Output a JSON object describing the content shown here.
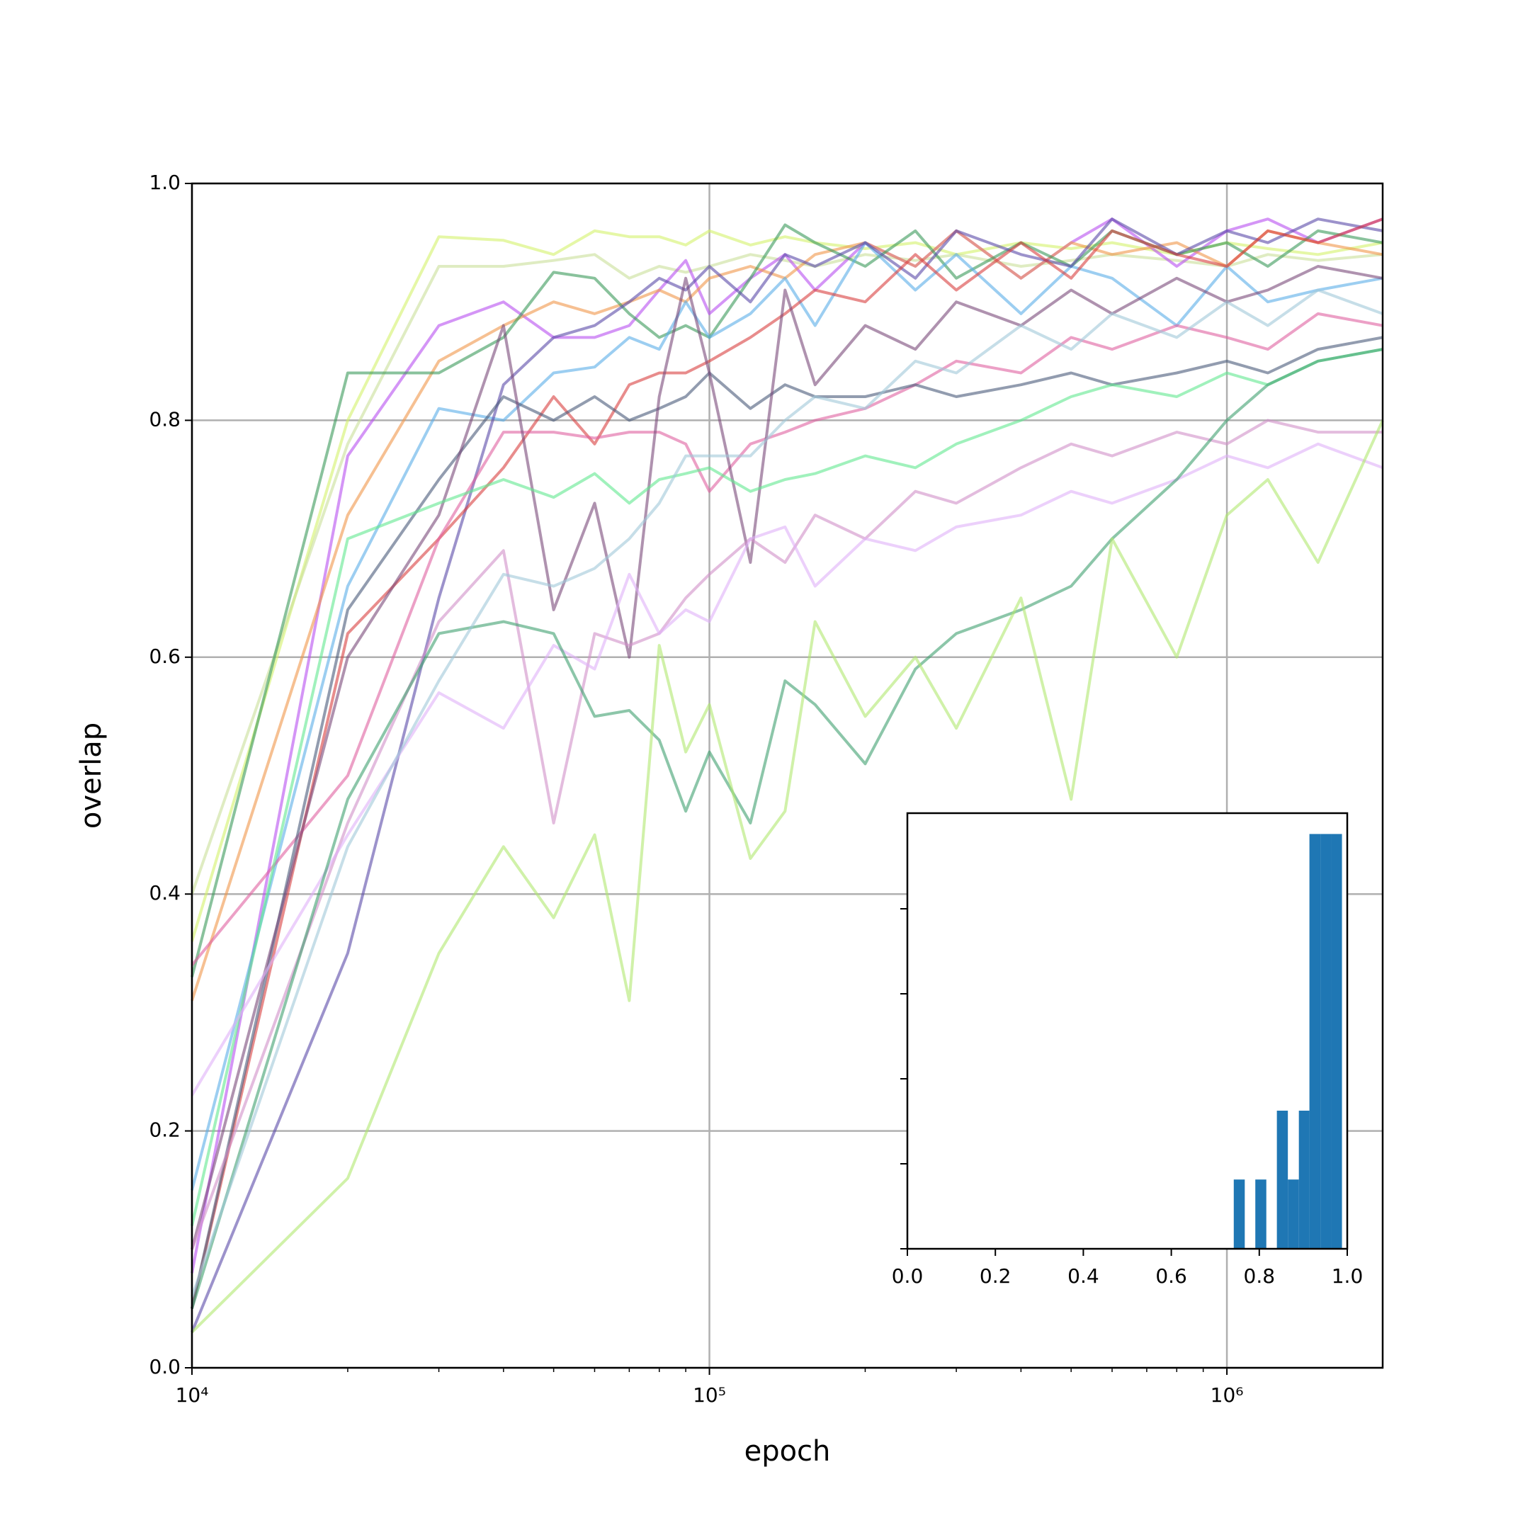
{
  "chart_data": [
    {
      "type": "line",
      "xlabel": "epoch",
      "ylabel": "overlap",
      "xscale": "log",
      "grid": true,
      "xlim": [
        10000,
        2000000
      ],
      "ylim": [
        0,
        1
      ],
      "xticks": [
        {
          "value": 10000,
          "label": "10⁴"
        },
        {
          "value": 100000,
          "label": "10⁵"
        },
        {
          "value": 1000000,
          "label": "10⁶"
        }
      ],
      "xminorticks": [
        20000,
        30000,
        40000,
        50000,
        60000,
        70000,
        80000,
        90000,
        200000,
        300000,
        400000,
        500000,
        600000,
        700000,
        800000,
        900000
      ],
      "yticks": [
        {
          "value": 0,
          "label": "0.0"
        },
        0.2,
        0.4,
        0.6,
        0.8,
        {
          "value": 1,
          "label": "1.0"
        }
      ],
      "x": [
        10000,
        20000,
        30000,
        40000,
        50000,
        60000,
        70000,
        80000,
        90000,
        100000,
        120000,
        140000,
        160000,
        200000,
        250000,
        300000,
        400000,
        500000,
        600000,
        800000,
        1000000,
        1200000,
        1500000,
        2000000
      ],
      "series": [
        {
          "color": "#d4f26a",
          "values": [
            0.36,
            0.8,
            0.955,
            0.952,
            0.94,
            0.96,
            0.955,
            0.955,
            0.948,
            0.96,
            0.948,
            0.955,
            0.95,
            0.945,
            0.95,
            0.94,
            0.95,
            0.945,
            0.95,
            0.94,
            0.95,
            0.945,
            0.94,
            0.95
          ]
        },
        {
          "color": "#c9e09a",
          "values": [
            0.4,
            0.78,
            0.93,
            0.93,
            0.935,
            0.94,
            0.92,
            0.93,
            0.925,
            0.93,
            0.94,
            0.935,
            0.93,
            0.94,
            0.935,
            0.94,
            0.93,
            0.935,
            0.94,
            0.935,
            0.93,
            0.94,
            0.935,
            0.94
          ]
        },
        {
          "color": "#b84ef0",
          "values": [
            0.08,
            0.77,
            0.88,
            0.9,
            0.87,
            0.87,
            0.88,
            0.91,
            0.935,
            0.89,
            0.92,
            0.94,
            0.91,
            0.95,
            0.93,
            0.96,
            0.92,
            0.95,
            0.97,
            0.93,
            0.96,
            0.97,
            0.95,
            0.97
          ]
        },
        {
          "color": "#f0964a",
          "values": [
            0.31,
            0.72,
            0.85,
            0.88,
            0.9,
            0.89,
            0.9,
            0.91,
            0.9,
            0.92,
            0.93,
            0.92,
            0.94,
            0.95,
            0.93,
            0.96,
            0.92,
            0.95,
            0.94,
            0.95,
            0.93,
            0.96,
            0.95,
            0.94
          ]
        },
        {
          "color": "#3a9a5a",
          "values": [
            0.33,
            0.84,
            0.84,
            0.87,
            0.925,
            0.92,
            0.89,
            0.87,
            0.88,
            0.87,
            0.92,
            0.965,
            0.95,
            0.93,
            0.96,
            0.92,
            0.95,
            0.93,
            0.96,
            0.94,
            0.95,
            0.93,
            0.96,
            0.95
          ]
        },
        {
          "color": "#5aaee8",
          "values": [
            0.15,
            0.66,
            0.81,
            0.8,
            0.84,
            0.845,
            0.87,
            0.86,
            0.9,
            0.87,
            0.89,
            0.92,
            0.88,
            0.95,
            0.91,
            0.94,
            0.89,
            0.93,
            0.92,
            0.88,
            0.93,
            0.9,
            0.91,
            0.92
          ]
        },
        {
          "color": "#5a4aa8",
          "values": [
            0.03,
            0.35,
            0.65,
            0.83,
            0.87,
            0.88,
            0.9,
            0.92,
            0.91,
            0.93,
            0.9,
            0.94,
            0.93,
            0.95,
            0.92,
            0.96,
            0.94,
            0.93,
            0.97,
            0.94,
            0.96,
            0.95,
            0.97,
            0.96
          ]
        },
        {
          "color": "#d84040",
          "values": [
            0.05,
            0.62,
            0.7,
            0.76,
            0.82,
            0.78,
            0.83,
            0.84,
            0.84,
            0.85,
            0.87,
            0.89,
            0.91,
            0.9,
            0.94,
            0.91,
            0.95,
            0.92,
            0.96,
            0.94,
            0.93,
            0.96,
            0.95,
            0.97
          ]
        },
        {
          "color": "#e060a0",
          "values": [
            0.34,
            0.5,
            0.7,
            0.79,
            0.79,
            0.785,
            0.79,
            0.79,
            0.78,
            0.74,
            0.78,
            0.79,
            0.8,
            0.81,
            0.83,
            0.85,
            0.84,
            0.87,
            0.86,
            0.88,
            0.87,
            0.86,
            0.89,
            0.88
          ]
        },
        {
          "color": "#4a5a7a",
          "values": [
            0.05,
            0.64,
            0.75,
            0.82,
            0.8,
            0.82,
            0.8,
            0.81,
            0.82,
            0.84,
            0.81,
            0.83,
            0.82,
            0.82,
            0.83,
            0.82,
            0.83,
            0.84,
            0.83,
            0.84,
            0.85,
            0.84,
            0.86,
            0.87
          ]
        },
        {
          "color": "#7a4a7a",
          "values": [
            0.1,
            0.6,
            0.72,
            0.88,
            0.64,
            0.73,
            0.6,
            0.82,
            0.92,
            0.84,
            0.68,
            0.91,
            0.83,
            0.88,
            0.86,
            0.9,
            0.88,
            0.91,
            0.89,
            0.92,
            0.9,
            0.91,
            0.93,
            0.92
          ]
        },
        {
          "color": "#60e890",
          "values": [
            0.12,
            0.7,
            0.73,
            0.75,
            0.735,
            0.755,
            0.73,
            0.75,
            0.755,
            0.76,
            0.74,
            0.75,
            0.755,
            0.77,
            0.76,
            0.78,
            0.8,
            0.82,
            0.83,
            0.82,
            0.84,
            0.83,
            0.85,
            0.86
          ]
        },
        {
          "color": "#d090c8",
          "values": [
            0.1,
            0.46,
            0.63,
            0.69,
            0.46,
            0.62,
            0.61,
            0.62,
            0.65,
            0.67,
            0.7,
            0.68,
            0.72,
            0.7,
            0.74,
            0.73,
            0.76,
            0.78,
            0.77,
            0.79,
            0.78,
            0.8,
            0.79,
            0.79
          ]
        },
        {
          "color": "#e0b0f8",
          "values": [
            0.23,
            0.45,
            0.57,
            0.54,
            0.61,
            0.59,
            0.67,
            0.62,
            0.64,
            0.63,
            0.7,
            0.71,
            0.66,
            0.7,
            0.69,
            0.71,
            0.72,
            0.74,
            0.73,
            0.75,
            0.77,
            0.76,
            0.78,
            0.76
          ]
        },
        {
          "color": "#40a070",
          "values": [
            0.05,
            0.48,
            0.62,
            0.63,
            0.62,
            0.55,
            0.555,
            0.53,
            0.47,
            0.52,
            0.46,
            0.58,
            0.56,
            0.51,
            0.59,
            0.62,
            0.64,
            0.66,
            0.7,
            0.75,
            0.8,
            0.83,
            0.85,
            0.86
          ]
        },
        {
          "color": "#b0e870",
          "values": [
            0.03,
            0.16,
            0.35,
            0.44,
            0.38,
            0.45,
            0.31,
            0.61,
            0.52,
            0.56,
            0.43,
            0.47,
            0.63,
            0.55,
            0.6,
            0.54,
            0.65,
            0.48,
            0.7,
            0.6,
            0.72,
            0.75,
            0.68,
            0.8
          ]
        },
        {
          "color": "#a0c8d8",
          "values": [
            0.06,
            0.44,
            0.58,
            0.67,
            0.66,
            0.675,
            0.7,
            0.73,
            0.77,
            0.77,
            0.77,
            0.8,
            0.82,
            0.81,
            0.85,
            0.84,
            0.88,
            0.86,
            0.89,
            0.87,
            0.9,
            0.88,
            0.91,
            0.89
          ]
        }
      ]
    },
    {
      "type": "histogram",
      "color": "#1f77b4",
      "bins": [
        0.742,
        0.767,
        0.791,
        0.816,
        0.84,
        0.865,
        0.89,
        0.914,
        0.939,
        0.963,
        0.988
      ],
      "values": [
        1.63,
        0,
        1.63,
        0,
        3.25,
        1.63,
        3.25,
        9.76,
        9.76,
        9.76
      ],
      "xlim": [
        0,
        1
      ],
      "ylim": [
        0,
        10.25
      ],
      "xticks": [
        {
          "value": 0,
          "label": "0.0"
        },
        0.2,
        0.4,
        0.6,
        0.8,
        {
          "value": 1,
          "label": "1.0"
        }
      ],
      "yticks": [
        0,
        2,
        4,
        6,
        8
      ]
    }
  ]
}
